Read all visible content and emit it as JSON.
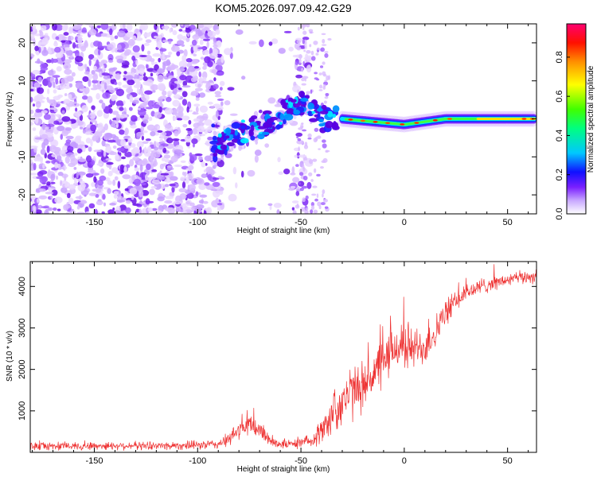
{
  "title": "KOM5.2026.097.09.42.G29",
  "chart_data": [
    {
      "type": "heatmap",
      "xlabel": "Height of straight line (km)",
      "ylabel": "Frequency (Hz)",
      "xlim": [
        -181,
        64
      ],
      "ylim": [
        -25,
        25
      ],
      "xticks": [
        -150,
        -100,
        -50,
        0,
        50
      ],
      "yticks": [
        -20,
        -10,
        0,
        10,
        20
      ],
      "colorbar": {
        "label": "Normalized spectral amplitude",
        "range": [
          0,
          0.97
        ],
        "ticks": [
          0.0,
          0.2,
          0.4,
          0.6,
          0.8
        ],
        "colormap": [
          "#ffffff",
          "#a060ff",
          "#5a00e0",
          "#0010ff",
          "#00e0ff",
          "#00ff30",
          "#ffff00",
          "#ff8000",
          "#ff0000",
          "#ff0080"
        ]
      },
      "ridge": {
        "description_points": [
          [
            -92,
            -8
          ],
          [
            -80,
            -4
          ],
          [
            -70,
            -2
          ],
          [
            -60,
            1
          ],
          [
            -48,
            4
          ],
          [
            -40,
            0
          ],
          [
            -30,
            0
          ],
          [
            -10,
            -1
          ],
          [
            0,
            -1.5
          ],
          [
            20,
            0
          ],
          [
            40,
            0
          ],
          [
            63,
            0
          ]
        ],
        "max_amplitude": 0.92
      }
    },
    {
      "type": "line",
      "xlabel": "Height of straight line (km)",
      "ylabel": "SNR (10 * v/v)",
      "xlim": [
        -181,
        64
      ],
      "ylim": [
        0,
        4600
      ],
      "xticks": [
        -150,
        -100,
        -50,
        0,
        50
      ],
      "yticks": [
        1000,
        2000,
        3000,
        4000
      ],
      "series": [
        {
          "name": "SNR",
          "color": "#ee3333",
          "x": [
            -181,
            -160,
            -140,
            -120,
            -100,
            -90,
            -85,
            -80,
            -75,
            -70,
            -65,
            -60,
            -55,
            -50,
            -45,
            -40,
            -35,
            -30,
            -25,
            -20,
            -15,
            -10,
            -5,
            0,
            5,
            10,
            15,
            20,
            25,
            30,
            35,
            40,
            45,
            50,
            55,
            60,
            64
          ],
          "values": [
            150,
            150,
            160,
            160,
            170,
            200,
            300,
            550,
            650,
            550,
            300,
            200,
            200,
            220,
            300,
            500,
            900,
            1250,
            1450,
            1600,
            1900,
            2150,
            2500,
            2600,
            2500,
            2550,
            2900,
            3350,
            3650,
            3850,
            3950,
            4050,
            4100,
            4150,
            4200,
            4230,
            4250
          ],
          "noise_amplitude": [
            120,
            120,
            120,
            120,
            130,
            150,
            200,
            300,
            350,
            300,
            200,
            140,
            140,
            150,
            200,
            400,
            600,
            800,
            800,
            700,
            800,
            700,
            700,
            800,
            600,
            600,
            500,
            400,
            300,
            300,
            250,
            250,
            200,
            200,
            200,
            200,
            200
          ]
        }
      ]
    }
  ]
}
